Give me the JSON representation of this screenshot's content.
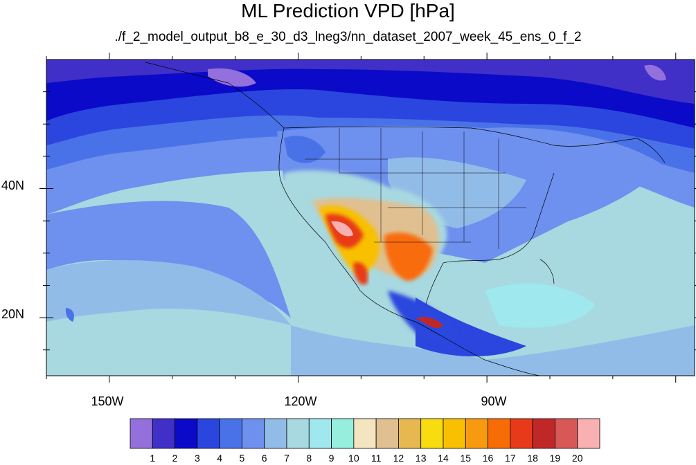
{
  "title": "ML Prediction VPD [hPa]",
  "subtitle": "./f_2_model_output_b8_e_30_d3_lneg3/nn_dataset_2007_week_45_ens_0_f_2",
  "map": {
    "projection": "cylindrical-equidistant",
    "lon_range": [
      -160,
      -57
    ],
    "lat_range": [
      11,
      60
    ],
    "lon_ticks": [
      {
        "value": -150,
        "label": "150W"
      },
      {
        "value": -120,
        "label": "120W"
      },
      {
        "value": -90,
        "label": "90W"
      }
    ],
    "lat_ticks": [
      {
        "value": 40,
        "label": "40N"
      },
      {
        "value": 20,
        "label": "20N"
      }
    ],
    "features": [
      "coastlines",
      "us-state-boundaries",
      "country-borders"
    ]
  },
  "colorbar": {
    "labels": [
      "1",
      "2",
      "3",
      "4",
      "5",
      "6",
      "7",
      "8",
      "9",
      "10",
      "11",
      "12",
      "13",
      "14",
      "15",
      "16",
      "17",
      "18",
      "19",
      "20"
    ],
    "colors": [
      "#9370db",
      "#4030c8",
      "#0a0ac8",
      "#2a46de",
      "#4a72e8",
      "#6e90ee",
      "#92bce8",
      "#a8d8e0",
      "#9ee8ee",
      "#96eedc",
      "#f4e4c0",
      "#e0c090",
      "#e8b850",
      "#f8dc10",
      "#f8c000",
      "#f89a10",
      "#f86c08",
      "#e83a18",
      "#c02828",
      "#d85858",
      "#f8b0b0"
    ]
  }
}
